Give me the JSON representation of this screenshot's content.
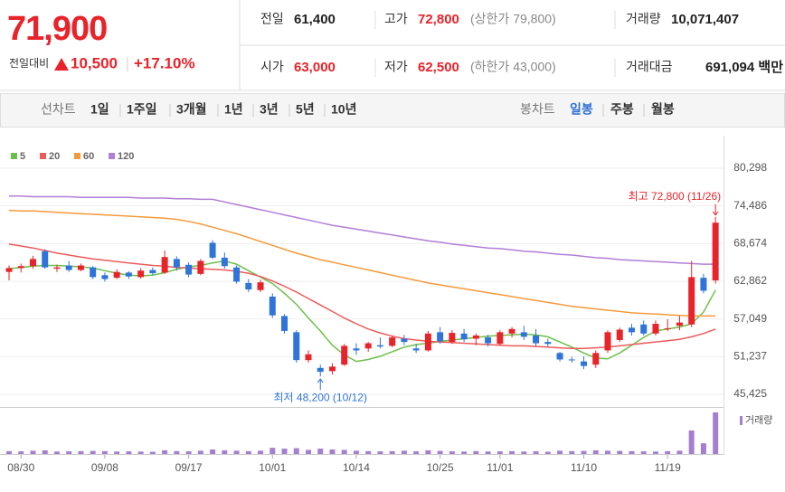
{
  "header": {
    "price": "71,900",
    "change_label": "전일대비",
    "change": "10,500",
    "change_pct": "+17.10%",
    "info": [
      {
        "label": "전일",
        "value": "61,400"
      },
      {
        "label": "고가",
        "value": "72,800",
        "note": "(상한가 79,800)"
      },
      {
        "label": "거래량",
        "value": "10,071,407"
      },
      {
        "label": "시가",
        "value": "63,000"
      },
      {
        "label": "저가",
        "value": "62,500",
        "note": "(하한가 43,000)"
      },
      {
        "label": "거래대금",
        "value": "691,094 백만"
      }
    ]
  },
  "tabs": {
    "line_label": "선차트",
    "periods": [
      "1일",
      "1주일",
      "3개월",
      "1년",
      "3년",
      "5년",
      "10년"
    ],
    "candle_label": "봉차트",
    "intervals": [
      "일봉",
      "주봉",
      "월봉"
    ]
  },
  "chart_data": {
    "type": "candlestick",
    "categories": [
      null,
      "08/30",
      null,
      null,
      null,
      null,
      null,
      null,
      "09/08",
      null,
      null,
      null,
      null,
      null,
      null,
      "09/17",
      null,
      null,
      null,
      null,
      null,
      null,
      "10/01",
      null,
      null,
      null,
      null,
      null,
      null,
      "10/14",
      null,
      null,
      null,
      null,
      null,
      null,
      "10/25",
      null,
      null,
      null,
      null,
      "11/01",
      null,
      null,
      null,
      null,
      null,
      null,
      "11/10",
      null,
      null,
      null,
      null,
      null,
      null,
      "11/19",
      null,
      null,
      null,
      null
    ],
    "open": [
      64300,
      64900,
      65200,
      67500,
      64800,
      65300,
      64600,
      65000,
      63800,
      63400,
      64200,
      63500,
      64600,
      64200,
      66300,
      65400,
      64000,
      68800,
      66500,
      65000,
      62600,
      61500,
      60500,
      57500,
      55000,
      50700,
      49500,
      49000,
      50000,
      52500,
      52500,
      53000,
      52900,
      54000,
      52500,
      52200,
      55000,
      53500,
      54800,
      54000,
      54200,
      53200,
      54800,
      55000,
      54500,
      53500,
      51800,
      50800,
      50500,
      50000,
      52200,
      53800,
      55700,
      56200,
      54800,
      55500,
      56000,
      56200,
      63400,
      63000
    ],
    "high": [
      65300,
      65600,
      66800,
      67800,
      65400,
      66000,
      65600,
      65200,
      64200,
      64700,
      64400,
      64900,
      65000,
      67600,
      66700,
      65800,
      66300,
      69200,
      67300,
      65300,
      63200,
      63100,
      61000,
      57800,
      55300,
      52200,
      50000,
      50200,
      53200,
      53300,
      53500,
      54200,
      54500,
      54600,
      53200,
      55200,
      55800,
      55300,
      55500,
      54800,
      54600,
      55300,
      55800,
      56000,
      55500,
      54000,
      52000,
      51200,
      51300,
      52200,
      55300,
      55700,
      56300,
      56800,
      56800,
      57000,
      57500,
      66000,
      64000,
      72800
    ],
    "low": [
      63000,
      64200,
      64800,
      64800,
      64300,
      64300,
      64400,
      63200,
      62800,
      63200,
      63200,
      63300,
      63800,
      64000,
      64500,
      63500,
      63800,
      66300,
      64800,
      62500,
      61200,
      61200,
      57200,
      54800,
      50300,
      50300,
      48200,
      48500,
      49800,
      51500,
      52000,
      52500,
      52700,
      53000,
      51800,
      52000,
      53200,
      53200,
      53500,
      53000,
      52800,
      53000,
      54200,
      53800,
      52800,
      52800,
      50500,
      50300,
      49300,
      49500,
      51800,
      53500,
      54500,
      54500,
      54500,
      55200,
      55300,
      55800,
      61000,
      62500
    ],
    "close": [
      64900,
      65200,
      66300,
      65000,
      65000,
      64600,
      65300,
      63500,
      63200,
      64300,
      63600,
      64500,
      64100,
      66600,
      65000,
      63900,
      66000,
      66500,
      65200,
      62800,
      61600,
      62700,
      57600,
      55200,
      50700,
      51600,
      48900,
      49700,
      52900,
      52200,
      53300,
      52800,
      54200,
      53500,
      52200,
      54800,
      53600,
      54900,
      53900,
      54500,
      53300,
      55000,
      55500,
      54300,
      53300,
      53200,
      50800,
      50700,
      49800,
      51800,
      55000,
      55400,
      55000,
      54800,
      56300,
      55600,
      56500,
      63500,
      61400,
      71900
    ],
    "up_color": "#e8232a",
    "down_color": "#2f74d8",
    "moving_averages": [
      {
        "name": "5",
        "color": "#6cc04a",
        "values": [
          64800,
          65000,
          65200,
          65300,
          65300,
          65200,
          65100,
          64900,
          64500,
          64100,
          63800,
          63700,
          63800,
          64200,
          64700,
          65100,
          65300,
          65700,
          66000,
          65500,
          64500,
          63500,
          62500,
          61000,
          59300,
          57200,
          55200,
          53000,
          51500,
          50500,
          50800,
          51300,
          52000,
          52700,
          53100,
          53300,
          53600,
          53800,
          54000,
          54200,
          54400,
          54500,
          54600,
          54700,
          54600,
          54300,
          53500,
          52700,
          51800,
          51000,
          50900,
          51800,
          53000,
          54200,
          55200,
          55500,
          55800,
          56300,
          58100,
          61500
        ]
      },
      {
        "name": "20",
        "color": "#ec5b5b",
        "values": [
          68600,
          68300,
          68000,
          67600,
          67200,
          66900,
          66600,
          66300,
          66100,
          65900,
          65700,
          65500,
          65300,
          65200,
          65000,
          64900,
          64800,
          64700,
          64600,
          64400,
          64100,
          63600,
          62900,
          62100,
          61200,
          60200,
          59200,
          58200,
          57200,
          56300,
          55500,
          54900,
          54400,
          54000,
          53800,
          53600,
          53500,
          53400,
          53300,
          53200,
          53100,
          53000,
          52900,
          52900,
          52800,
          52700,
          52600,
          52500,
          52500,
          52600,
          52700,
          52900,
          53100,
          53300,
          53500,
          53700,
          53900,
          54300,
          54800,
          55500
        ]
      },
      {
        "name": "60",
        "color": "#f59a3b",
        "values": [
          73800,
          73700,
          73700,
          73600,
          73500,
          73400,
          73300,
          73200,
          73100,
          73000,
          72900,
          72800,
          72700,
          72600,
          72400,
          72100,
          71700,
          71200,
          70700,
          70200,
          69600,
          69000,
          68400,
          67800,
          67200,
          66700,
          66200,
          65800,
          65400,
          65000,
          64600,
          64200,
          63800,
          63400,
          63000,
          62600,
          62300,
          62000,
          61700,
          61400,
          61100,
          60800,
          60500,
          60200,
          59900,
          59600,
          59300,
          59000,
          58800,
          58600,
          58400,
          58200,
          58000,
          57900,
          57800,
          57700,
          57600,
          57500,
          57500,
          57500
        ]
      },
      {
        "name": "120",
        "color": "#b07fd6",
        "values": [
          76000,
          76000,
          75900,
          75900,
          75900,
          75900,
          75800,
          75800,
          75800,
          75800,
          75800,
          75700,
          75700,
          75700,
          75600,
          75600,
          75500,
          75500,
          75100,
          74700,
          74300,
          73900,
          73500,
          73100,
          72700,
          72300,
          71900,
          71500,
          71200,
          70900,
          70600,
          70300,
          70000,
          69700,
          69400,
          69100,
          68900,
          68600,
          68400,
          68200,
          68000,
          67900,
          67700,
          67500,
          67400,
          67200,
          67000,
          66900,
          66700,
          66500,
          66400,
          66200,
          66100,
          66000,
          65900,
          65800,
          65700,
          65600,
          65500,
          65500
        ]
      }
    ],
    "volume": {
      "name": "거래량",
      "color": "#a57fcf",
      "ylim": [
        0,
        10500000
      ],
      "values": [
        700000,
        650000,
        800000,
        900000,
        600000,
        650000,
        700000,
        750000,
        700000,
        600000,
        650000,
        600000,
        550000,
        900000,
        700000,
        650000,
        800000,
        1100000,
        900000,
        800000,
        700000,
        800000,
        1500000,
        1300000,
        1400000,
        1000000,
        1300000,
        1100000,
        1000000,
        800000,
        700000,
        650000,
        700000,
        800000,
        650000,
        900000,
        750000,
        650000,
        600000,
        700000,
        600000,
        650000,
        700000,
        600000,
        650000,
        550000,
        800000,
        700000,
        750000,
        900000,
        800000,
        750000,
        700000,
        650000,
        600000,
        700000,
        800000,
        5700000,
        2600000,
        10071407
      ]
    },
    "ylim": [
      45425,
      80298
    ],
    "yticks": [
      {
        "value": 45425,
        "label": "45,425"
      },
      {
        "value": 51237,
        "label": "51,237"
      },
      {
        "value": 57049,
        "label": "57,049"
      },
      {
        "value": 62862,
        "label": "62,862"
      },
      {
        "value": 68674,
        "label": "68,674"
      },
      {
        "value": 74486,
        "label": "74,486"
      },
      {
        "value": 80298,
        "label": "80,298"
      }
    ],
    "grid": true,
    "high_label": "최고 72,800 (11/26)",
    "low_label": "최저 48,200 (10/12)"
  }
}
